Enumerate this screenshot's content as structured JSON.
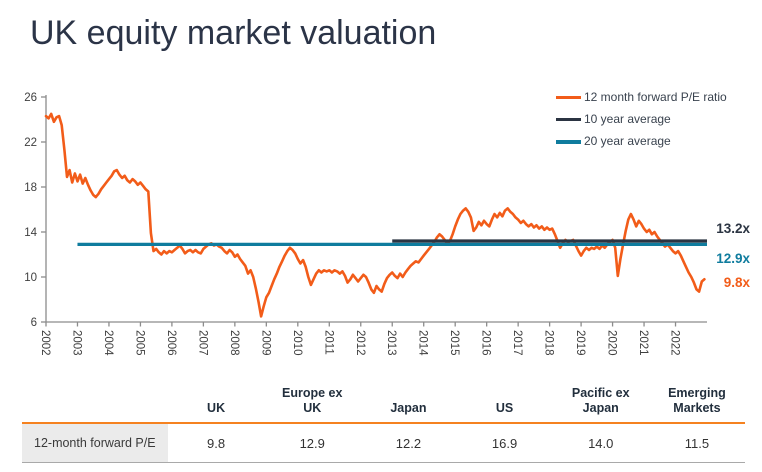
{
  "page": {
    "title": "UK equity market valuation"
  },
  "chart_data": {
    "type": "line",
    "title": "UK equity market valuation",
    "xlabel": "",
    "ylabel": "",
    "ylim": [
      6,
      26
    ],
    "yticks": [
      26,
      22,
      18,
      14,
      10,
      6
    ],
    "x_range": [
      2002,
      2023
    ],
    "xticks": [
      2002,
      2003,
      2004,
      2005,
      2006,
      2007,
      2008,
      2009,
      2010,
      2011,
      2012,
      2013,
      2014,
      2015,
      2016,
      2017,
      2018,
      2019,
      2020,
      2021,
      2022
    ],
    "grid": false,
    "legend_position": "top-right",
    "axis_color": "#8c8c8c",
    "tick_label_color": "#404040",
    "series": [
      {
        "name": "12 month forward P/E ratio",
        "type": "line",
        "color": "#f25c19",
        "start_year": 2002,
        "points_per_year": 12,
        "values": [
          24.3,
          24.1,
          24.5,
          23.8,
          24.2,
          24.3,
          23.5,
          21.3,
          18.9,
          19.5,
          18.4,
          19.2,
          18.5,
          19.1,
          18.3,
          18.8,
          18.2,
          17.7,
          17.3,
          17.1,
          17.4,
          17.8,
          18.1,
          18.4,
          18.7,
          19.0,
          19.4,
          19.5,
          19.1,
          18.8,
          19.0,
          18.6,
          18.4,
          18.7,
          18.5,
          18.2,
          18.4,
          18.1,
          17.8,
          17.6,
          13.9,
          12.3,
          12.5,
          12.2,
          12.0,
          12.3,
          12.1,
          12.3,
          12.2,
          12.4,
          12.6,
          12.8,
          12.5,
          12.1,
          12.3,
          12.4,
          12.2,
          12.4,
          12.2,
          12.1,
          12.5,
          12.7,
          12.9,
          13.0,
          12.8,
          12.9,
          12.7,
          12.6,
          12.3,
          12.1,
          12.4,
          12.2,
          11.8,
          12.0,
          11.6,
          11.3,
          11.0,
          10.3,
          10.6,
          10.0,
          9.0,
          7.8,
          6.5,
          7.4,
          8.2,
          8.6,
          9.2,
          9.8,
          10.3,
          10.9,
          11.4,
          11.9,
          12.3,
          12.6,
          12.4,
          12.1,
          11.6,
          11.2,
          11.5,
          10.9,
          10.0,
          9.3,
          9.8,
          10.3,
          10.6,
          10.4,
          10.6,
          10.5,
          10.6,
          10.4,
          10.6,
          10.5,
          10.3,
          10.5,
          10.1,
          9.5,
          9.8,
          10.2,
          9.9,
          9.6,
          9.9,
          10.2,
          10.0,
          9.5,
          8.9,
          8.6,
          9.2,
          8.9,
          8.7,
          9.4,
          9.9,
          10.2,
          10.4,
          10.1,
          9.9,
          10.3,
          10.0,
          10.4,
          10.7,
          11.0,
          11.2,
          11.4,
          11.3,
          11.6,
          11.9,
          12.2,
          12.5,
          12.8,
          13.1,
          13.5,
          13.8,
          13.6,
          13.3,
          12.9,
          13.2,
          13.8,
          14.5,
          15.1,
          15.6,
          15.9,
          16.1,
          15.8,
          15.3,
          14.1,
          14.4,
          14.9,
          14.6,
          15.0,
          14.7,
          14.5,
          15.1,
          15.6,
          15.3,
          15.7,
          15.4,
          15.9,
          16.1,
          15.8,
          15.6,
          15.3,
          15.1,
          14.8,
          15.0,
          14.7,
          14.5,
          14.7,
          14.4,
          14.6,
          14.3,
          14.5,
          14.2,
          14.4,
          14.2,
          14.3,
          13.8,
          13.2,
          12.6,
          13.0,
          13.3,
          13.1,
          13.2,
          13.3,
          12.8,
          12.3,
          11.9,
          12.3,
          12.6,
          12.4,
          12.6,
          12.5,
          12.7,
          12.5,
          12.8,
          12.6,
          12.9,
          13.1,
          13.3,
          12.6,
          10.1,
          11.6,
          12.9,
          14.1,
          15.1,
          15.6,
          15.1,
          14.5,
          15.0,
          14.7,
          14.3,
          14.0,
          14.2,
          13.8,
          14.0,
          13.6,
          13.3,
          13.0,
          12.7,
          12.9,
          12.6,
          12.3,
          12.1,
          12.3,
          11.9,
          11.4,
          10.9,
          10.4,
          10.0,
          9.5,
          8.9,
          8.7,
          9.6,
          9.8
        ]
      },
      {
        "name": "10 year average",
        "type": "average-line",
        "color": "#2b3442",
        "value": 13.2,
        "x_start": 2013,
        "x_end": 2023
      },
      {
        "name": "20 year average",
        "type": "average-line",
        "color": "#0f7c9e",
        "value": 12.9,
        "x_start": 2003,
        "x_end": 2023
      }
    ],
    "annotations": [
      {
        "text": "13.2x",
        "series": "10 year average",
        "color": "#2b3442",
        "value": 13.2
      },
      {
        "text": "12.9x",
        "series": "20 year average",
        "color": "#0f7c9e",
        "value": 12.9
      },
      {
        "text": "9.8x",
        "series": "12 month forward P/E ratio",
        "color": "#f25c19",
        "value": 9.8
      }
    ]
  },
  "table": {
    "row_label": "12-month forward P/E",
    "columns": [
      "UK",
      "Europe ex UK",
      "Japan",
      "US",
      "Pacific ex Japan",
      "Emerging Markets"
    ],
    "values": [
      "9.8",
      "12.9",
      "12.2",
      "16.9",
      "14.0",
      "11.5"
    ]
  }
}
